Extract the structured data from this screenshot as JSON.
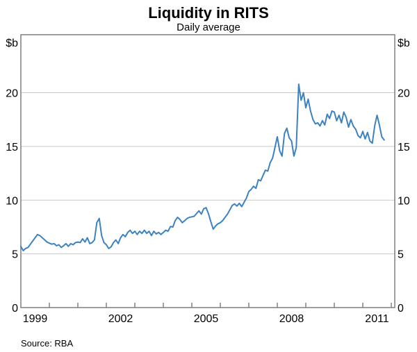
{
  "header": {
    "title": "Liquidity in RITS",
    "subtitle": "Daily average"
  },
  "axis_units": {
    "left": "$b",
    "right": "$b"
  },
  "footer": {
    "source": "Source: RBA"
  },
  "chart_data": {
    "type": "line",
    "title": "Liquidity in RITS",
    "subtitle": "Daily average",
    "ylabel": "$b",
    "unit_label_both_sides": true,
    "ylim": [
      0,
      25.4
    ],
    "yticks": [
      0,
      5,
      10,
      15,
      20
    ],
    "ytick_labels_both_sides": true,
    "grid": "horizontal",
    "x_start_year": 1999,
    "x_end": 2012.1,
    "xtick_minor_years": [
      2000,
      2001,
      2002,
      2003,
      2004,
      2005,
      2006,
      2007,
      2008,
      2009,
      2010,
      2011,
      2012
    ],
    "xtick_labeled_years": [
      1999,
      2002,
      2005,
      2008,
      2011
    ],
    "legend_position": "none",
    "line_color": "#3c82c3",
    "grid_color": "#c9c9c9",
    "frame_color": "#7f7f7f",
    "source": "Source: RBA",
    "series": [
      {
        "name": "RITS liquidity, daily average ($b)",
        "frequency": "monthly",
        "start": "1999-01",
        "end": "2011-10",
        "values": [
          5.7,
          5.3,
          5.5,
          5.6,
          5.9,
          6.2,
          6.5,
          6.8,
          6.7,
          6.5,
          6.3,
          6.1,
          6.0,
          5.9,
          5.95,
          5.75,
          5.85,
          5.6,
          5.75,
          5.95,
          5.7,
          5.95,
          5.85,
          6.05,
          6.1,
          6.05,
          6.4,
          6.1,
          6.5,
          5.95,
          6.05,
          6.3,
          7.9,
          8.3,
          6.7,
          6.05,
          5.85,
          5.5,
          5.65,
          6.05,
          6.3,
          5.95,
          6.5,
          6.8,
          6.6,
          7.0,
          7.2,
          6.9,
          7.1,
          6.8,
          7.1,
          6.9,
          7.2,
          6.9,
          7.1,
          6.7,
          7.1,
          6.85,
          7.0,
          6.8,
          7.0,
          7.2,
          7.1,
          7.55,
          7.5,
          8.1,
          8.4,
          8.2,
          7.9,
          8.1,
          8.3,
          8.4,
          8.45,
          8.5,
          8.75,
          9.0,
          8.7,
          9.2,
          9.3,
          8.75,
          8.0,
          7.3,
          7.6,
          7.8,
          7.9,
          8.1,
          8.4,
          8.7,
          9.1,
          9.5,
          9.65,
          9.45,
          9.7,
          9.4,
          9.8,
          10.2,
          10.8,
          11.0,
          11.3,
          11.1,
          11.9,
          11.8,
          12.3,
          12.8,
          12.7,
          13.5,
          13.9,
          14.9,
          15.9,
          14.6,
          14.1,
          16.2,
          16.7,
          15.8,
          15.5,
          14.1,
          14.9,
          20.8,
          19.3,
          20.0,
          18.6,
          19.4,
          18.3,
          17.5,
          17.1,
          17.2,
          16.9,
          17.4,
          17.0,
          18.0,
          17.6,
          18.3,
          18.2,
          17.4,
          17.9,
          17.2,
          18.2,
          17.7,
          16.8,
          17.5,
          16.9,
          16.6,
          16.0,
          15.8,
          16.4,
          15.7,
          16.3,
          15.5,
          15.3,
          16.9,
          17.9,
          17.0,
          15.9,
          15.6
        ]
      }
    ]
  }
}
